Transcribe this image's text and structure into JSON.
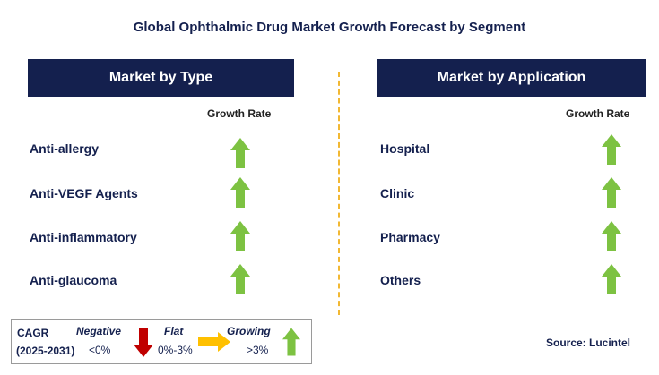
{
  "title": "Global Ophthalmic Drug Market Growth Forecast by Segment",
  "chart_data": {
    "type": "table",
    "title": "Global Ophthalmic Drug Market Growth Forecast by Segment",
    "panels": [
      {
        "header": "Market by Type",
        "column_label": "Growth Rate",
        "rows": [
          {
            "label": "Anti-allergy",
            "trend": "growing"
          },
          {
            "label": "Anti-VEGF Agents",
            "trend": "growing"
          },
          {
            "label": "Anti-inflammatory",
            "trend": "growing"
          },
          {
            "label": "Anti-glaucoma",
            "trend": "growing"
          }
        ]
      },
      {
        "header": "Market by Application",
        "column_label": "Growth Rate",
        "rows": [
          {
            "label": "Hospital",
            "trend": "growing"
          },
          {
            "label": "Clinic",
            "trend": "growing"
          },
          {
            "label": "Pharmacy",
            "trend": "growing"
          },
          {
            "label": "Others",
            "trend": "growing"
          }
        ]
      }
    ],
    "legend": {
      "title": "CAGR",
      "period": "(2025-2031)",
      "items": [
        {
          "name": "Negative",
          "range": "<0%",
          "icon": "down-arrow-icon",
          "color": "#c00000"
        },
        {
          "name": "Flat",
          "range": "0%-3%",
          "icon": "right-arrow-icon",
          "color": "#ffc000"
        },
        {
          "name": "Growing",
          "range": ">3%",
          "icon": "up-arrow-icon",
          "color": "#7dc242"
        }
      ]
    }
  },
  "source": "Source: Lucintel",
  "colors": {
    "header_bg": "#14204e",
    "growing": "#7dc242",
    "flat": "#ffc000",
    "negative": "#c00000",
    "divider": "#f2b833"
  }
}
